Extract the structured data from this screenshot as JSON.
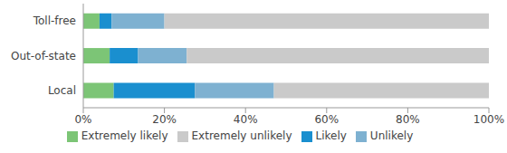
{
  "chart_data": {
    "type": "bar",
    "orientation": "horizontal",
    "stacked": true,
    "categories": [
      "Toll-free",
      "Out-of-state",
      "Local"
    ],
    "series": [
      {
        "name": "Extremely likely",
        "color": "#7cc576",
        "values": [
          4,
          6.5,
          7.5
        ]
      },
      {
        "name": "Likely",
        "color": "#1a8fcf",
        "values": [
          3,
          7,
          20
        ]
      },
      {
        "name": "Unlikely",
        "color": "#7eb1d1",
        "values": [
          13,
          12,
          19.5
        ]
      },
      {
        "name": "Extremely unlikely",
        "color": "#cacaca",
        "values": [
          80,
          74.5,
          53
        ]
      }
    ],
    "xlim": [
      0,
      100
    ],
    "xticks": [
      {
        "value": 0,
        "label": "0%"
      },
      {
        "value": 20,
        "label": "20%"
      },
      {
        "value": 40,
        "label": "40%"
      },
      {
        "value": 60,
        "label": "60%"
      },
      {
        "value": 80,
        "label": "80%"
      },
      {
        "value": 100,
        "label": "100%"
      }
    ],
    "grid": false,
    "legend": "bottom"
  }
}
